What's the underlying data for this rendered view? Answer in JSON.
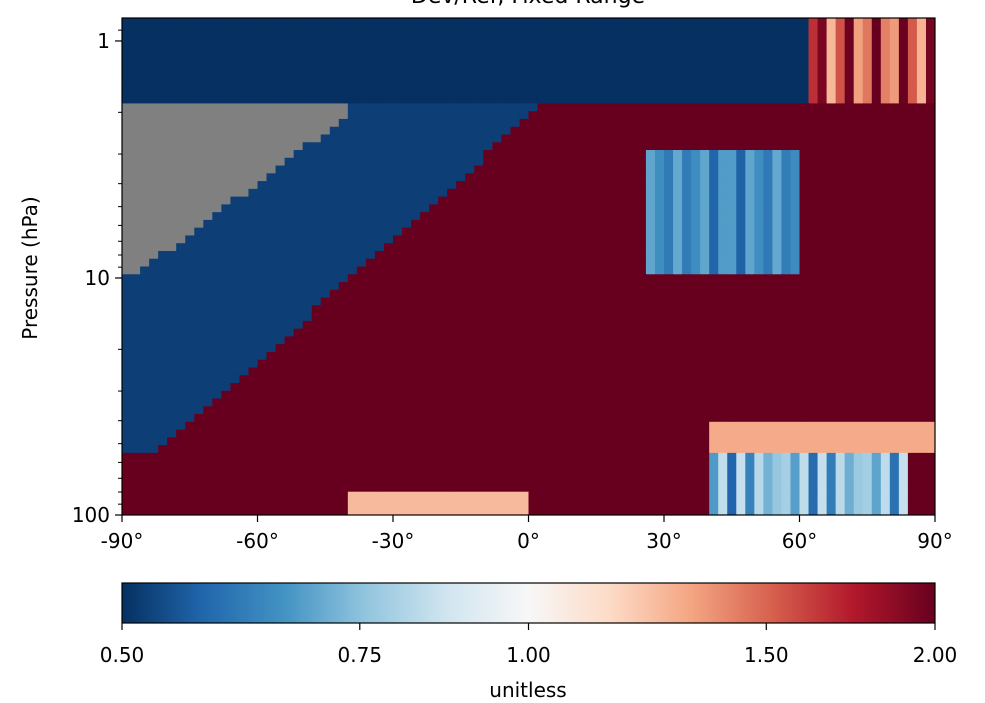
{
  "chart_data": {
    "type": "heatmap",
    "title": "Dev/Ref, Fixed Range",
    "ylabel": "Pressure (hPa)",
    "xlabel": "",
    "xlim": [
      -90,
      90
    ],
    "ylim": [
      100,
      0.8
    ],
    "yscale": "log",
    "xticks": [
      -90,
      -60,
      -30,
      0,
      30,
      60,
      90
    ],
    "xtick_labels": [
      "-90°",
      "-60°",
      "-30°",
      "0°",
      "30°",
      "60°",
      "90°"
    ],
    "yticks": [
      1,
      10,
      100
    ],
    "ytick_labels": [
      "1",
      "10",
      "100"
    ],
    "missing_color": "#808080",
    "colorbar": {
      "label": "unitless",
      "range": [
        0.5,
        2.0
      ],
      "ticks": [
        0.5,
        0.75,
        1.0,
        1.5,
        2.0
      ],
      "tick_labels": [
        "0.50",
        "0.75",
        "1.00",
        "1.50",
        "2.00"
      ],
      "colormap": "RdBu_r",
      "colors": [
        "#053061",
        "#2166ac",
        "#4393c3",
        "#92c5de",
        "#d1e5f0",
        "#f7f7f7",
        "#fddbc7",
        "#f4a582",
        "#d6604d",
        "#b2182b",
        "#67001f"
      ]
    },
    "regions": [
      {
        "desc": "high ratio",
        "value": 2.0
      },
      {
        "desc": "low ratio",
        "value": 0.5
      },
      {
        "desc": "missing data",
        "value": null
      }
    ]
  }
}
